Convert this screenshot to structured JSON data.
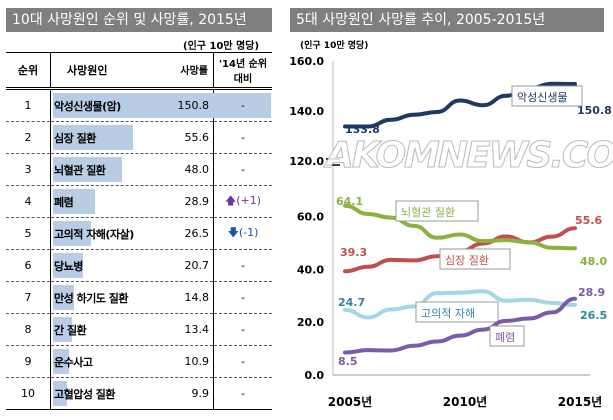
{
  "left": {
    "title": "10대 사망원인 순위 및 사망률, 2015년",
    "unit": "(인구 10만 명당)",
    "headers": {
      "rank": "순위",
      "cause": "사망원인",
      "rate": "사망률",
      "change": "'14년 순위 대비"
    },
    "rows": [
      {
        "rank": "1",
        "cause": "악성신생물(암)",
        "rate": 150.8,
        "change": "-",
        "dir": ""
      },
      {
        "rank": "2",
        "cause": "심장 질환",
        "rate": 55.6,
        "change": "-",
        "dir": ""
      },
      {
        "rank": "3",
        "cause": "뇌혈관 질환",
        "rate": 48.0,
        "change": "-",
        "dir": ""
      },
      {
        "rank": "4",
        "cause": "폐렴",
        "rate": 28.9,
        "change": "(+1)",
        "dir": "up"
      },
      {
        "rank": "5",
        "cause": "고의적 자해(자살)",
        "rate": 26.5,
        "change": "(-1)",
        "dir": "down"
      },
      {
        "rank": "6",
        "cause": "당뇨병",
        "rate": 20.7,
        "change": "-",
        "dir": ""
      },
      {
        "rank": "7",
        "cause": "만성 하기도 질환",
        "rate": 14.8,
        "change": "-",
        "dir": ""
      },
      {
        "rank": "8",
        "cause": "간 질환",
        "rate": 13.4,
        "change": "-",
        "dir": ""
      },
      {
        "rank": "9",
        "cause": "운수사고",
        "rate": 10.9,
        "change": "-",
        "dir": ""
      },
      {
        "rank": "10",
        "cause": "고혈압성 질환",
        "rate": 9.9,
        "change": "-",
        "dir": ""
      }
    ]
  },
  "watermark": "AKOMNEWS.COM",
  "chart_data": {
    "type": "line",
    "title": "5대 사망원인 사망률 추이, 2005-2015년",
    "ylabel": "(인구 10만 명당)",
    "x": [
      2005,
      2006,
      2007,
      2008,
      2009,
      2010,
      2011,
      2012,
      2013,
      2014,
      2015
    ],
    "xticks": [
      "2005년",
      "2010년",
      "2015년"
    ],
    "yticks_upper": [
      "160.0",
      "140.0",
      "120.0"
    ],
    "yticks_lower": [
      "60.0",
      "40.0",
      "20.0",
      "0.0"
    ],
    "axis_break": [
      65,
      120
    ],
    "series": [
      {
        "name": "악성신생물",
        "color": "#1f3864",
        "values": [
          133.8,
          133.8,
          136.5,
          138.5,
          139.6,
          144.2,
          142.3,
          146.1,
          149.0,
          150.9,
          150.8
        ],
        "start_label": "133.8",
        "end_label": "150.8"
      },
      {
        "name": "심장 질환",
        "color": "#c0504d",
        "values": [
          39.3,
          41.0,
          43.6,
          43.4,
          45.0,
          46.9,
          49.8,
          52.5,
          50.2,
          52.4,
          55.6
        ],
        "start_label": "39.3",
        "end_label": "55.6"
      },
      {
        "name": "뇌혈관 질환",
        "color": "#8db03f",
        "values": [
          64.1,
          61.0,
          59.6,
          56.5,
          52.0,
          53.2,
          50.7,
          51.1,
          50.3,
          48.2,
          48.0
        ],
        "start_label": "64.1",
        "end_label": "48.0"
      },
      {
        "name": "고의적 자해",
        "color": "#a5d5e6",
        "values": [
          24.7,
          21.8,
          24.8,
          26.0,
          31.0,
          31.2,
          31.7,
          28.1,
          28.5,
          27.3,
          26.5
        ],
        "start_label": "24.7",
        "end_label": "26.5"
      },
      {
        "name": "폐렴",
        "color": "#7a5ca8",
        "values": [
          8.5,
          9.4,
          9.3,
          11.1,
          12.7,
          14.9,
          17.2,
          20.5,
          21.4,
          23.7,
          28.9
        ],
        "start_label": "8.5",
        "end_label": "28.9"
      }
    ]
  }
}
